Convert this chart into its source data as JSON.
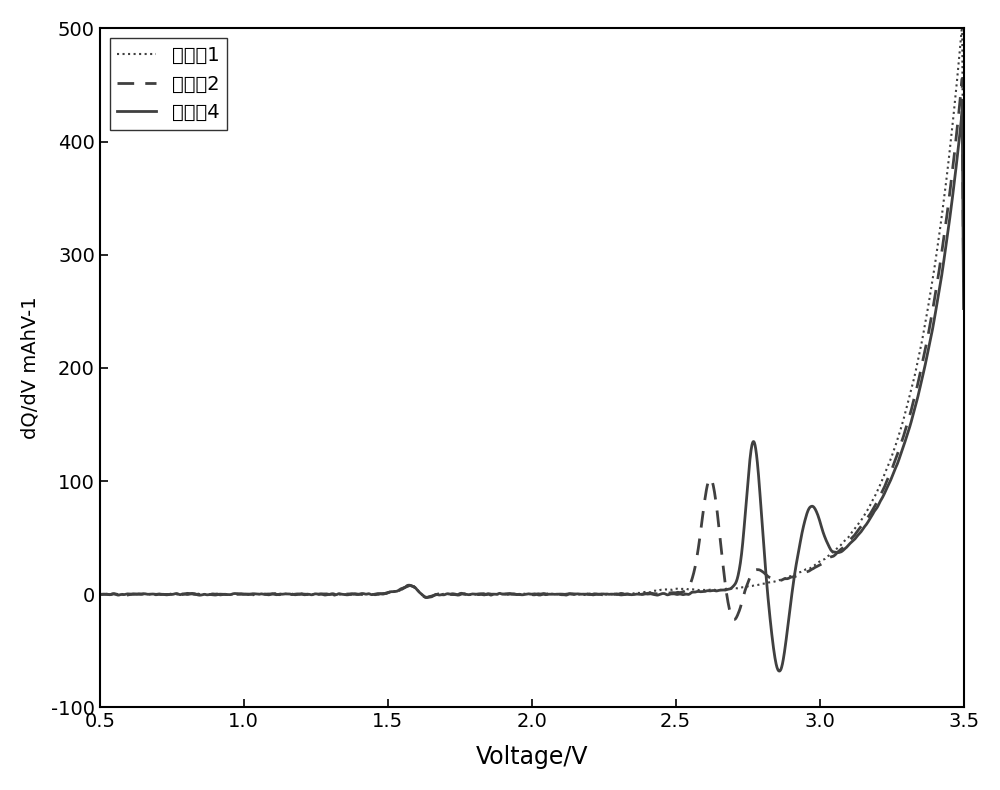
{
  "xlabel": "Voltage/V",
  "ylabel": "dQ/dV mAhV-1",
  "xlim": [
    0.5,
    3.5
  ],
  "ylim": [
    -100,
    500
  ],
  "xticks": [
    0.5,
    1.0,
    1.5,
    2.0,
    2.5,
    3.0,
    3.5
  ],
  "yticks": [
    -100,
    0,
    100,
    200,
    300,
    400,
    500
  ],
  "legend_labels": [
    "对比兡1",
    "对比兡2",
    "实施兡4"
  ],
  "line_color": "#404040",
  "line_width": 1.5,
  "figsize": [
    10.0,
    7.9
  ],
  "dpi": 100
}
